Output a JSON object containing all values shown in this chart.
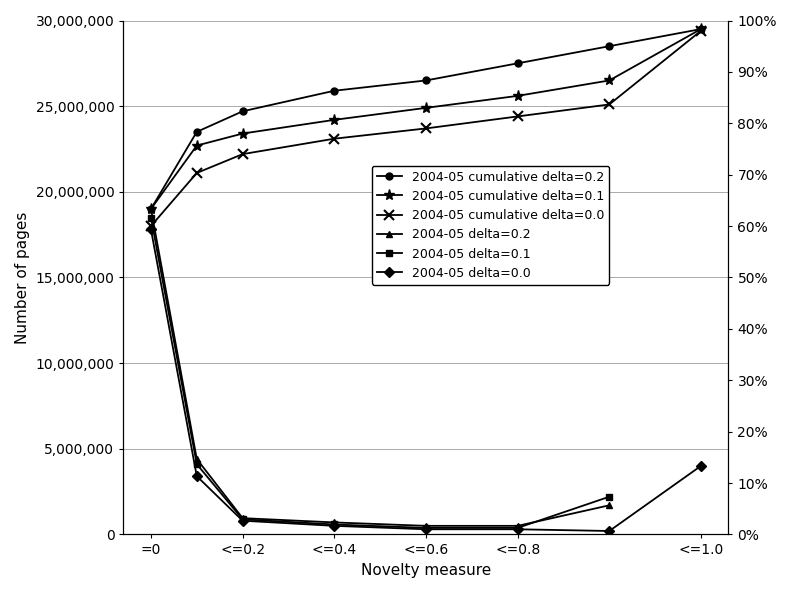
{
  "x_positions": [
    0,
    0.5,
    1,
    2,
    3,
    4,
    5,
    6
  ],
  "x_tick_positions": [
    0,
    1,
    2,
    3,
    4,
    6
  ],
  "x_tick_labels": [
    "=0",
    "<=0.2",
    "<=0.4",
    "<=0.6",
    "<=0.8",
    "<=1.0"
  ],
  "cum_02": [
    19000000,
    23500000,
    24700000,
    25900000,
    26500000,
    27500000,
    28500000,
    29500000
  ],
  "cum_01": [
    19000000,
    22700000,
    23400000,
    24200000,
    24900000,
    25600000,
    26500000,
    29500000
  ],
  "cum_00": [
    18000000,
    21100000,
    22200000,
    23100000,
    23700000,
    24400000,
    25100000,
    29400000
  ],
  "delta_02": [
    19000000,
    4400000,
    950000,
    700000,
    500000,
    500000,
    1700000,
    null
  ],
  "delta_01": [
    18500000,
    4100000,
    880000,
    580000,
    380000,
    380000,
    2200000,
    null
  ],
  "delta_00": [
    17800000,
    3400000,
    800000,
    500000,
    300000,
    300000,
    200000,
    4000000
  ],
  "ylabel_left": "Number of pages",
  "xlabel": "Novelty measure",
  "ylim_left": [
    0,
    30000000
  ],
  "legend_labels": [
    "2004-05 cumulative delta=0.2",
    "2004-05 cumulative delta=0.1",
    "2004-05 cumulative delta=0.0",
    "2004-05 delta=0.2",
    "2004-05 delta=0.1",
    "2004-05 delta=0.0"
  ],
  "background_color": "#ffffff",
  "grid_color": "#aaaaaa"
}
